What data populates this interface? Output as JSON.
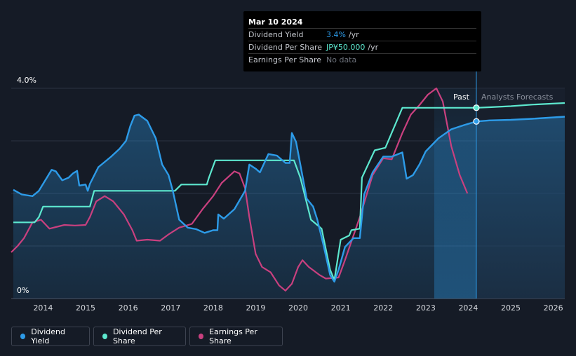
{
  "colors": {
    "dividend_yield": "#2d9be8",
    "dividend_per_share": "#5de8cf",
    "earnings_per_share": "#c9407f",
    "grid": "#2c3342",
    "background": "#151b26"
  },
  "tooltip": {
    "date": "Mar 10 2024",
    "rows": [
      {
        "label": "Dividend Yield",
        "value": "3.4%",
        "unit": "/yr"
      },
      {
        "label": "Dividend Per Share",
        "value": "JP¥50.000",
        "unit": "/yr"
      },
      {
        "label": "Earnings Per Share",
        "value": "No data",
        "unit": ""
      }
    ]
  },
  "legend": [
    {
      "label": "Dividend Yield"
    },
    {
      "label": "Dividend Per Share"
    },
    {
      "label": "Earnings Per Share"
    }
  ],
  "chart_data": {
    "type": "line",
    "title": "",
    "xlabel": "",
    "ylabel": "",
    "xlim": [
      2013.25,
      2026.27
    ],
    "ylim": [
      0,
      4.0
    ],
    "y_tick_labels": [
      "4.0%",
      "0%"
    ],
    "x_ticks": [
      2014,
      2015,
      2016,
      2017,
      2018,
      2019,
      2020,
      2021,
      2022,
      2023,
      2024,
      2025,
      2026
    ],
    "x_tick_labels": [
      "2014",
      "2015",
      "2016",
      "2017",
      "2018",
      "2019",
      "2020",
      "2021",
      "2022",
      "2023",
      "2024",
      "2025",
      "2026"
    ],
    "past_label": "Past",
    "forecast_label": "Analysts Forecasts",
    "current_x": 2024.19,
    "forecast_band_start": 2023.2,
    "series": [
      {
        "name": "Dividend Yield",
        "unit": "%",
        "points": [
          [
            2013.3,
            2.07
          ],
          [
            2013.5,
            1.98
          ],
          [
            2013.75,
            1.95
          ],
          [
            2013.9,
            2.05
          ],
          [
            2014.05,
            2.25
          ],
          [
            2014.2,
            2.45
          ],
          [
            2014.3,
            2.42
          ],
          [
            2014.45,
            2.25
          ],
          [
            2014.6,
            2.3
          ],
          [
            2014.7,
            2.38
          ],
          [
            2014.8,
            2.43
          ],
          [
            2014.85,
            2.15
          ],
          [
            2015.0,
            2.17
          ],
          [
            2015.05,
            2.05
          ],
          [
            2015.1,
            2.18
          ],
          [
            2015.3,
            2.5
          ],
          [
            2015.6,
            2.7
          ],
          [
            2015.8,
            2.85
          ],
          [
            2015.95,
            3.0
          ],
          [
            2016.05,
            3.28
          ],
          [
            2016.15,
            3.48
          ],
          [
            2016.25,
            3.5
          ],
          [
            2016.45,
            3.38
          ],
          [
            2016.65,
            3.05
          ],
          [
            2016.8,
            2.55
          ],
          [
            2016.95,
            2.35
          ],
          [
            2017.05,
            2.05
          ],
          [
            2017.2,
            1.5
          ],
          [
            2017.4,
            1.35
          ],
          [
            2017.6,
            1.32
          ],
          [
            2017.8,
            1.25
          ],
          [
            2018.0,
            1.3
          ],
          [
            2018.1,
            1.3
          ],
          [
            2018.12,
            1.6
          ],
          [
            2018.25,
            1.52
          ],
          [
            2018.5,
            1.7
          ],
          [
            2018.75,
            2.05
          ],
          [
            2018.85,
            2.55
          ],
          [
            2019.0,
            2.47
          ],
          [
            2019.1,
            2.4
          ],
          [
            2019.3,
            2.75
          ],
          [
            2019.5,
            2.72
          ],
          [
            2019.7,
            2.58
          ],
          [
            2019.8,
            2.58
          ],
          [
            2019.85,
            3.15
          ],
          [
            2019.95,
            2.98
          ],
          [
            2020.05,
            2.55
          ],
          [
            2020.2,
            1.9
          ],
          [
            2020.35,
            1.75
          ],
          [
            2020.45,
            1.5
          ],
          [
            2020.6,
            1.0
          ],
          [
            2020.75,
            0.45
          ],
          [
            2020.85,
            0.32
          ],
          [
            2020.95,
            0.55
          ],
          [
            2021.1,
            0.98
          ],
          [
            2021.3,
            1.15
          ],
          [
            2021.45,
            1.15
          ],
          [
            2021.55,
            1.98
          ],
          [
            2021.75,
            2.4
          ],
          [
            2022.0,
            2.7
          ],
          [
            2022.2,
            2.7
          ],
          [
            2022.45,
            2.78
          ],
          [
            2022.55,
            2.28
          ],
          [
            2022.7,
            2.35
          ],
          [
            2022.85,
            2.55
          ],
          [
            2023.0,
            2.8
          ],
          [
            2023.3,
            3.05
          ],
          [
            2023.6,
            3.22
          ],
          [
            2023.9,
            3.3
          ],
          [
            2024.19,
            3.37
          ],
          [
            2024.5,
            3.39
          ],
          [
            2025.0,
            3.4
          ],
          [
            2025.5,
            3.42
          ],
          [
            2026.27,
            3.46
          ]
        ]
      },
      {
        "name": "Dividend Per Share",
        "unit": "JP¥",
        "points": [
          [
            2013.3,
            1.45
          ],
          [
            2013.8,
            1.45
          ],
          [
            2013.9,
            1.55
          ],
          [
            2014.0,
            1.75
          ],
          [
            2014.8,
            1.75
          ],
          [
            2015.1,
            1.75
          ],
          [
            2015.2,
            2.05
          ],
          [
            2017.1,
            2.05
          ],
          [
            2017.25,
            2.17
          ],
          [
            2017.85,
            2.17
          ],
          [
            2017.9,
            2.3
          ],
          [
            2018.05,
            2.63
          ],
          [
            2019.9,
            2.63
          ],
          [
            2020.05,
            2.3
          ],
          [
            2020.3,
            1.5
          ],
          [
            2020.55,
            1.33
          ],
          [
            2020.75,
            0.55
          ],
          [
            2020.85,
            0.35
          ],
          [
            2021.0,
            1.12
          ],
          [
            2021.2,
            1.2
          ],
          [
            2021.25,
            1.3
          ],
          [
            2021.45,
            1.33
          ],
          [
            2021.5,
            2.3
          ],
          [
            2021.8,
            2.82
          ],
          [
            2022.05,
            2.87
          ],
          [
            2022.45,
            3.63
          ],
          [
            2024.19,
            3.63
          ],
          [
            2024.5,
            3.64
          ],
          [
            2025.0,
            3.66
          ],
          [
            2025.5,
            3.69
          ],
          [
            2026.27,
            3.72
          ]
        ]
      },
      {
        "name": "Earnings Per Share",
        "unit": "JP¥",
        "points": [
          [
            2013.25,
            0.88
          ],
          [
            2013.4,
            1.0
          ],
          [
            2013.55,
            1.15
          ],
          [
            2013.75,
            1.45
          ],
          [
            2013.95,
            1.5
          ],
          [
            2014.15,
            1.33
          ],
          [
            2014.3,
            1.36
          ],
          [
            2014.5,
            1.4
          ],
          [
            2014.75,
            1.39
          ],
          [
            2015.0,
            1.4
          ],
          [
            2015.1,
            1.55
          ],
          [
            2015.25,
            1.85
          ],
          [
            2015.45,
            1.95
          ],
          [
            2015.65,
            1.85
          ],
          [
            2015.9,
            1.6
          ],
          [
            2016.1,
            1.3
          ],
          [
            2016.2,
            1.1
          ],
          [
            2016.45,
            1.12
          ],
          [
            2016.75,
            1.1
          ],
          [
            2016.95,
            1.22
          ],
          [
            2017.2,
            1.35
          ],
          [
            2017.5,
            1.42
          ],
          [
            2017.75,
            1.7
          ],
          [
            2018.0,
            1.95
          ],
          [
            2018.2,
            2.2
          ],
          [
            2018.5,
            2.42
          ],
          [
            2018.62,
            2.38
          ],
          [
            2018.75,
            2.1
          ],
          [
            2018.85,
            1.55
          ],
          [
            2019.0,
            0.85
          ],
          [
            2019.15,
            0.6
          ],
          [
            2019.35,
            0.5
          ],
          [
            2019.55,
            0.25
          ],
          [
            2019.7,
            0.15
          ],
          [
            2019.85,
            0.28
          ],
          [
            2020.0,
            0.6
          ],
          [
            2020.1,
            0.73
          ],
          [
            2020.25,
            0.6
          ],
          [
            2020.5,
            0.45
          ],
          [
            2020.65,
            0.38
          ],
          [
            2020.95,
            0.4
          ],
          [
            2021.1,
            0.73
          ],
          [
            2021.45,
            1.55
          ],
          [
            2021.75,
            2.35
          ],
          [
            2022.0,
            2.67
          ],
          [
            2022.2,
            2.65
          ],
          [
            2022.45,
            3.15
          ],
          [
            2022.65,
            3.5
          ],
          [
            2022.85,
            3.68
          ],
          [
            2023.05,
            3.88
          ],
          [
            2023.25,
            4.0
          ],
          [
            2023.4,
            3.75
          ],
          [
            2023.6,
            2.9
          ],
          [
            2023.8,
            2.35
          ],
          [
            2023.98,
            2.0
          ]
        ]
      }
    ]
  }
}
